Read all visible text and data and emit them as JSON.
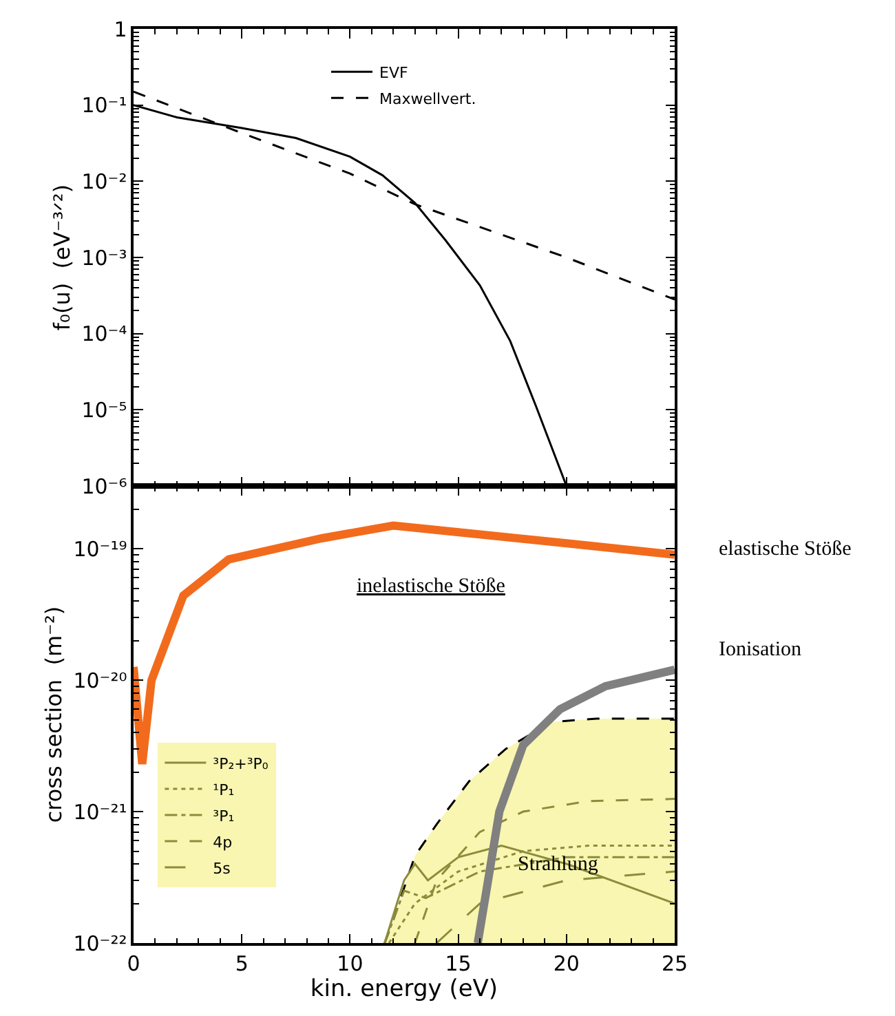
{
  "chart_data": [
    {
      "type": "line",
      "ylabel": "f₀(u)  (eV⁻³ᐟ²)",
      "xlim": [
        0,
        25
      ],
      "xticks": [
        0,
        5,
        10,
        15,
        20,
        25
      ],
      "ylim": [
        1e-06,
        1
      ],
      "log": "y",
      "yticks": [
        1,
        {
          "value": 0.1,
          "label": "10⁻¹"
        },
        {
          "value": 0.01,
          "label": "10⁻²"
        },
        {
          "value": 0.001,
          "label": "10⁻³"
        },
        {
          "value": 0.0001,
          "label": "10⁻⁴"
        },
        {
          "value": 1e-05,
          "label": "10⁻⁵"
        },
        {
          "value": 1e-06,
          "label": "10⁻⁶"
        }
      ],
      "tick_labels": "y",
      "legend": "top",
      "marker": "none",
      "series": [
        {
          "name": "EVF",
          "color": "#000000",
          "line_style": "solid",
          "x": [
            0,
            2,
            5,
            7.5,
            10,
            11.5,
            13,
            14.4,
            16,
            17.4,
            18.6,
            20
          ],
          "values": [
            0.1,
            0.069,
            0.05,
            0.037,
            0.021,
            0.012,
            0.0052,
            0.0017,
            0.00043,
            8e-05,
            1.1e-05,
            1e-06
          ]
        },
        {
          "name": "Maxwellvert.",
          "color": "#000000",
          "line_style": "dashed",
          "x": [
            0,
            5,
            10,
            13,
            20,
            25
          ],
          "values": [
            0.15,
            0.043,
            0.0126,
            0.005,
            0.001,
            0.00028
          ]
        }
      ]
    },
    {
      "type": "line",
      "xlabel": "kin. energy (eV)",
      "ylabel": "cross section  (m⁻²)",
      "xlim": [
        0,
        25
      ],
      "xticks": [
        0,
        5,
        10,
        15,
        20,
        25
      ],
      "ylim": [
        1e-22,
        3e-19
      ],
      "log": "y",
      "yticks": [
        {
          "value": 1e-22,
          "label": "10⁻²²"
        },
        {
          "value": 1e-21,
          "label": "10⁻²¹"
        },
        {
          "value": 1e-20,
          "label": "10⁻²⁰"
        },
        {
          "value": 1e-19,
          "label": "10⁻¹⁹"
        }
      ],
      "legend": "left",
      "marker": "none",
      "annotations": [
        "elastische Stöße",
        "Ionisation",
        {
          "text": "Strahlung",
          "x": 19.6,
          "y": 4e-22
        },
        "inelastische Stöße"
      ],
      "series": [
        {
          "type": "area",
          "color": "#f8f6b0",
          "line_style": "dashed",
          "x": [
            11.6,
            12,
            13,
            14,
            15.5,
            17.2,
            19.3,
            21.4,
            25
          ],
          "values": [
            1e-22,
            1.5e-22,
            4.6e-22,
            8e-22,
            1.7e-21,
            3e-21,
            4.8e-21,
            5.1e-21,
            5.1e-21
          ]
        },
        {
          "name": "³P₂+³P₀",
          "color": "#8c8c3c",
          "line_style": "solid",
          "x": [
            11.6,
            12.5,
            13,
            13.6,
            15,
            17,
            20,
            25
          ],
          "values": [
            1e-22,
            3e-22,
            4e-22,
            3e-22,
            4.5e-22,
            5.5e-22,
            4e-22,
            2e-22
          ]
        },
        {
          "name": "¹P₁",
          "color": "#8c8c3c",
          "line_style": "dotted",
          "x": [
            11.8,
            13,
            15,
            18,
            21,
            25
          ],
          "values": [
            1e-22,
            2e-22,
            3.5e-22,
            5e-22,
            5.5e-22,
            5.5e-22
          ]
        },
        {
          "name": "³P₁",
          "color": "#8c8c3c",
          "line_style": "dashdot",
          "x": [
            11.6,
            12.5,
            13.5,
            16,
            20,
            25
          ],
          "values": [
            1e-22,
            2.5e-22,
            2.2e-22,
            3.5e-22,
            4.5e-22,
            4.5e-22
          ]
        },
        {
          "name": "4p",
          "color": "#8c8c3c",
          "line_style": "dashed",
          "x": [
            13,
            14,
            16,
            18,
            21,
            25
          ],
          "values": [
            1e-22,
            3e-22,
            7e-22,
            1e-21,
            1.2e-21,
            1.25e-21
          ]
        },
        {
          "name": "5s",
          "color": "#8c8c3c",
          "line_style": "longdash",
          "x": [
            14,
            16,
            20,
            25
          ],
          "values": [
            1e-22,
            2e-22,
            3e-22,
            3.5e-22
          ]
        },
        {
          "color": "#808080",
          "line_style": "solid",
          "x": [
            15.9,
            16.3,
            16.9,
            18,
            19.7,
            21.8,
            25
          ],
          "values": [
            1e-22,
            2.5e-22,
            1e-21,
            3.2e-21,
            6e-21,
            9e-21,
            1.2e-20
          ]
        },
        {
          "color": "#f26b1d",
          "line_style": "solid",
          "x": [
            0,
            0.4,
            0.83,
            2.3,
            4.4,
            8.7,
            12,
            20,
            25
          ],
          "values": [
            1.26e-20,
            2.3e-21,
            1e-20,
            4.4e-20,
            8.3e-20,
            1.2e-19,
            1.5e-19,
            1.1e-19,
            9e-20
          ]
        }
      ]
    }
  ]
}
